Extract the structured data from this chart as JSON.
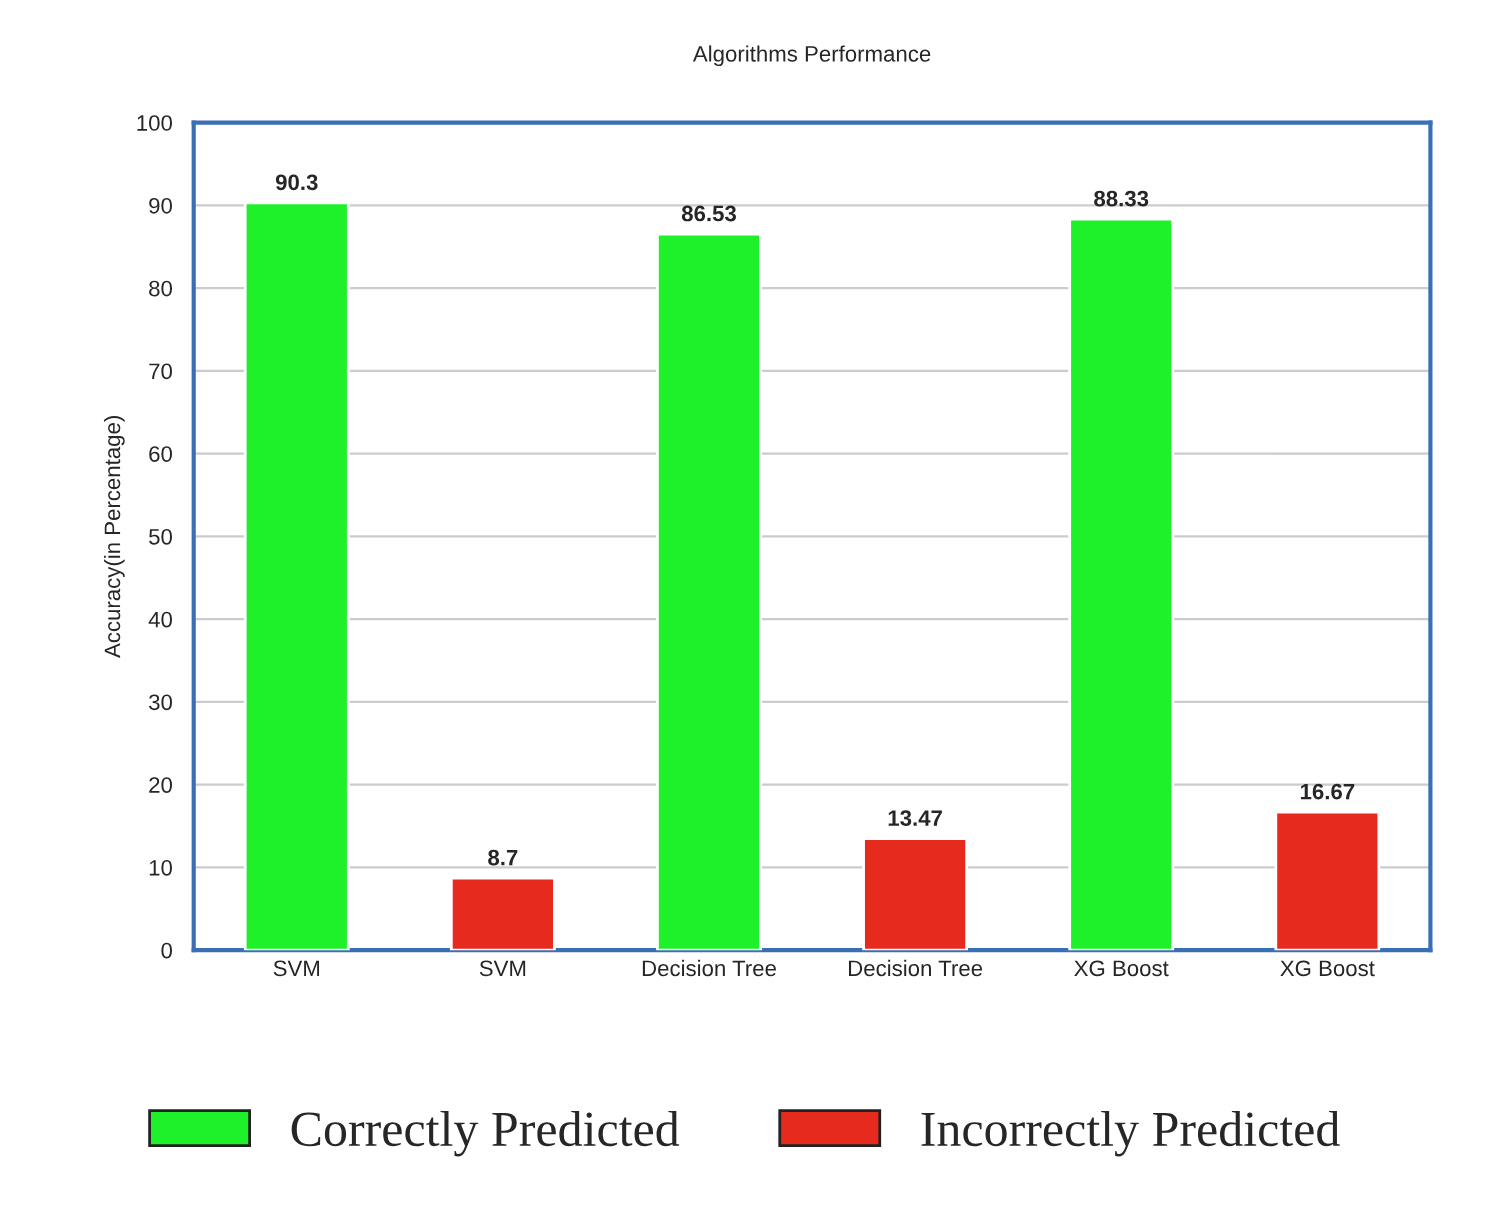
{
  "chart_data": {
    "type": "bar",
    "title": "Algorithms Performance",
    "ylabel": "Accuracy(in Percentage)",
    "categories": [
      "SVM",
      "SVM",
      "Decision Tree",
      "Decision Tree",
      "XG Boost",
      "XG Boost"
    ],
    "series": [
      {
        "name": "Correctly Predicted",
        "color": "#1ef02a",
        "values": [
          90.3,
          null,
          86.53,
          null,
          88.33,
          null
        ]
      },
      {
        "name": "Incorrectly Predicted",
        "color": "#e62a1e",
        "values": [
          null,
          8.7,
          null,
          13.47,
          null,
          16.67
        ]
      }
    ],
    "ylim": [
      0,
      100
    ],
    "yticks": [
      0,
      10,
      20,
      30,
      40,
      50,
      60,
      70,
      80,
      90,
      100
    ],
    "grid": "y",
    "data_labels": true,
    "legend": "bottom"
  }
}
